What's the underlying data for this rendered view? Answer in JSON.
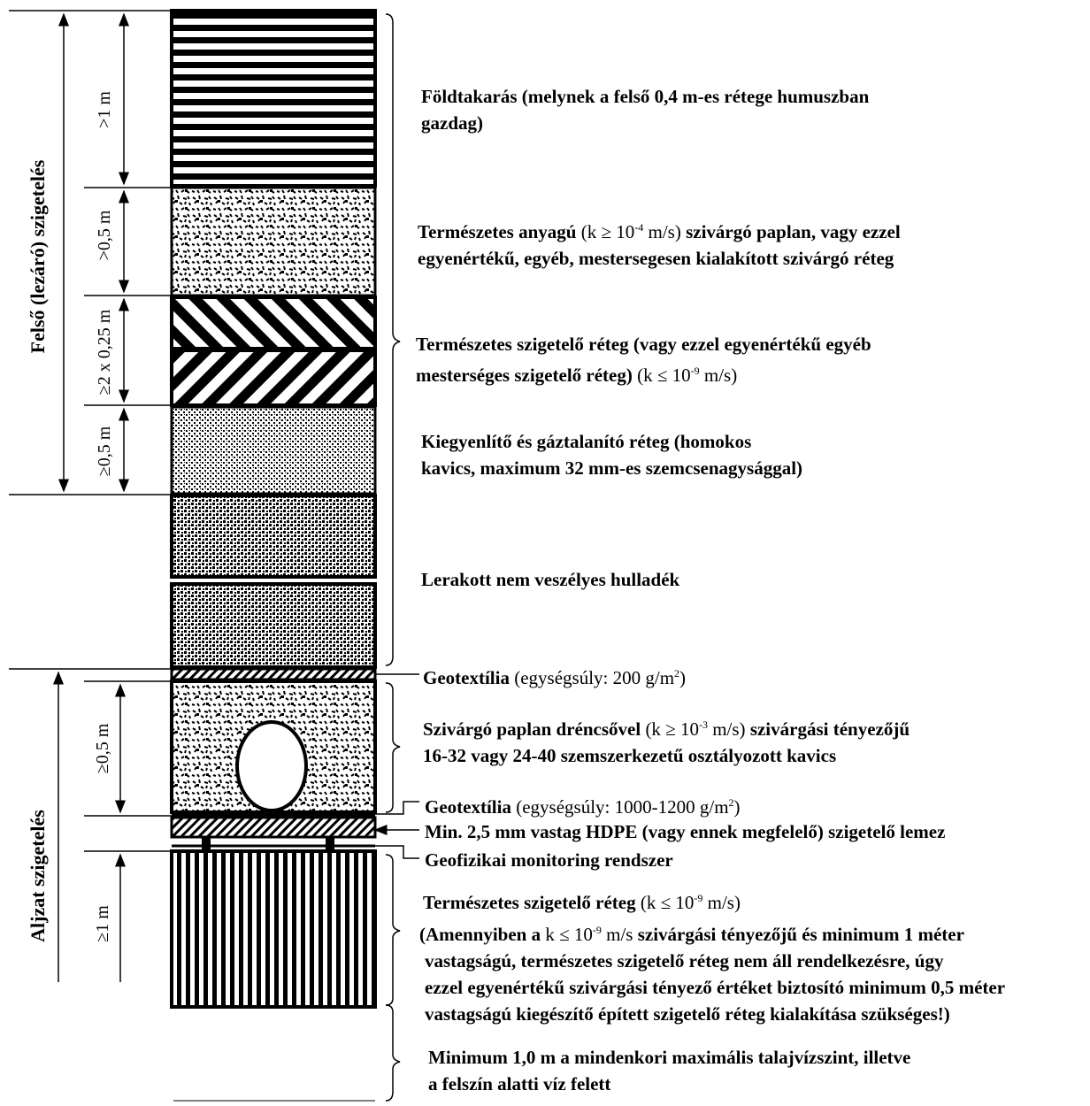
{
  "groups": {
    "top": "Felső (lezáró) szigetelés",
    "bottom": "Aljzat szigetelés"
  },
  "dimensions": {
    "d1": ">1 m",
    "d2": ">0,5 m",
    "d3": "≥2 x 0,25 m",
    "d4": "≥0,5 m",
    "d5": "≥0,5 m",
    "d6": "≥1 m"
  },
  "labels": {
    "l1": "Földtakarás (melynek a felső 0,4 m-es rétege humuszban",
    "l1b": "gazdag)",
    "l2a": "Természetes anyagú",
    "l2k": "(k ≥ 10",
    "l2exp": "-4",
    "l2u": " m/s)",
    "l2b": " szivárgó paplan, vagy ezzel",
    "l2c": "egyenértékű, egyéb, mestersegesen kialakított szivárgó réteg",
    "l3a": "Természetes szigetelő réteg (vagy ezzel egyenértékű egyéb",
    "l3b": "mesterséges szigetelő réteg)",
    "l3k": " (k ≤ 10",
    "l3exp": "-9",
    "l3u": " m/s)",
    "l4a": "Kiegyenlítő és gáztalanító réteg (homokos",
    "l4b": "kavics, maximum 32 mm-es szemcsenagysággal)",
    "l5": "Lerakott nem veszélyes hulladék",
    "l6a": "Geotextília",
    "l6b": " (egységsúly: 200 g/m",
    "l6exp": "2",
    "l6c": ")",
    "l7a": "Szivárgó paplan dréncsővel",
    "l7k": " (k ≥ 10",
    "l7exp": "-3",
    "l7u": " m/s)",
    "l7b": " szivárgási tényezőjű",
    "l7c": "16-32 vagy 24-40 szemszerkezetű osztályozott kavics",
    "l8a": "Geotextília",
    "l8b": " (egységsúly: 1000-1200 g/m",
    "l8exp": "2",
    "l8c": ")",
    "l9": "Min. 2,5 mm vastag HDPE (vagy ennek megfelelő) szigetelő lemez",
    "l10": "Geofizikai monitoring rendszer",
    "l11a": "Természetes szigetelő réteg",
    "l11k": " (k ≤ 10",
    "l11exp": "-9",
    "l11u": " m/s)",
    "l12a": "(Amennyiben a",
    "l12k": " k ≤ 10",
    "l12exp": "-9",
    "l12u": " m/s",
    "l12b": " szivárgási tényezőjű és minimum 1 méter",
    "l12c": "vastagságú, természetes szigetelő réteg nem áll rendelkezésre, úgy",
    "l12d": "ezzel egyenértékű szivárgási tényező értéket biztosító minimum 0,5 méter",
    "l12e": "vastagságú kiegészítő épített szigetelő réteg kialakítása szükséges!)",
    "l13a": "Minimum 1,0 m a mindenkori maximális talajvízszint, illetve",
    "l13b": "a felszín alatti víz felett"
  }
}
